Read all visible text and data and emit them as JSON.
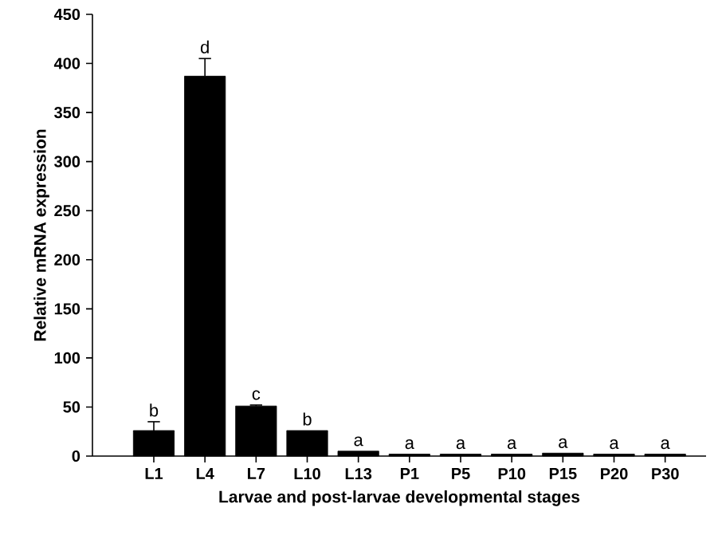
{
  "chart_data": {
    "type": "bar",
    "xlabel": "Larvae and post-larvae developmental stages",
    "ylabel": "Relative mRNA expression",
    "categories": [
      "L1",
      "L4",
      "L7",
      "L10",
      "L13",
      "P1",
      "P5",
      "P10",
      "P15",
      "P20",
      "P30"
    ],
    "values": [
      26,
      387,
      51,
      26,
      5,
      2,
      2,
      2,
      3,
      2,
      2
    ],
    "errors": [
      9,
      18,
      1,
      null,
      null,
      null,
      null,
      null,
      null,
      null,
      null
    ],
    "color": "#000000",
    "ylim": [
      0,
      450
    ],
    "yticks": [
      0,
      50,
      100,
      150,
      200,
      250,
      300,
      350,
      400,
      450
    ],
    "annotations": [
      {
        "text": "b",
        "x": "L1",
        "y": 35
      },
      {
        "text": "d",
        "x": "L4",
        "y": 405
      },
      {
        "text": "c",
        "x": "L7",
        "y": 52
      },
      {
        "text": "b",
        "x": "L10",
        "y": 26
      },
      {
        "text": "a",
        "x": "L13",
        "y": 5
      },
      {
        "text": "a",
        "x": "P1",
        "y": 2
      },
      {
        "text": "a",
        "x": "P5",
        "y": 2
      },
      {
        "text": "a",
        "x": "P10",
        "y": 2
      },
      {
        "text": "a",
        "x": "P15",
        "y": 3
      },
      {
        "text": "a",
        "x": "P20",
        "y": 2
      },
      {
        "text": "a",
        "x": "P30",
        "y": 2
      }
    ]
  }
}
